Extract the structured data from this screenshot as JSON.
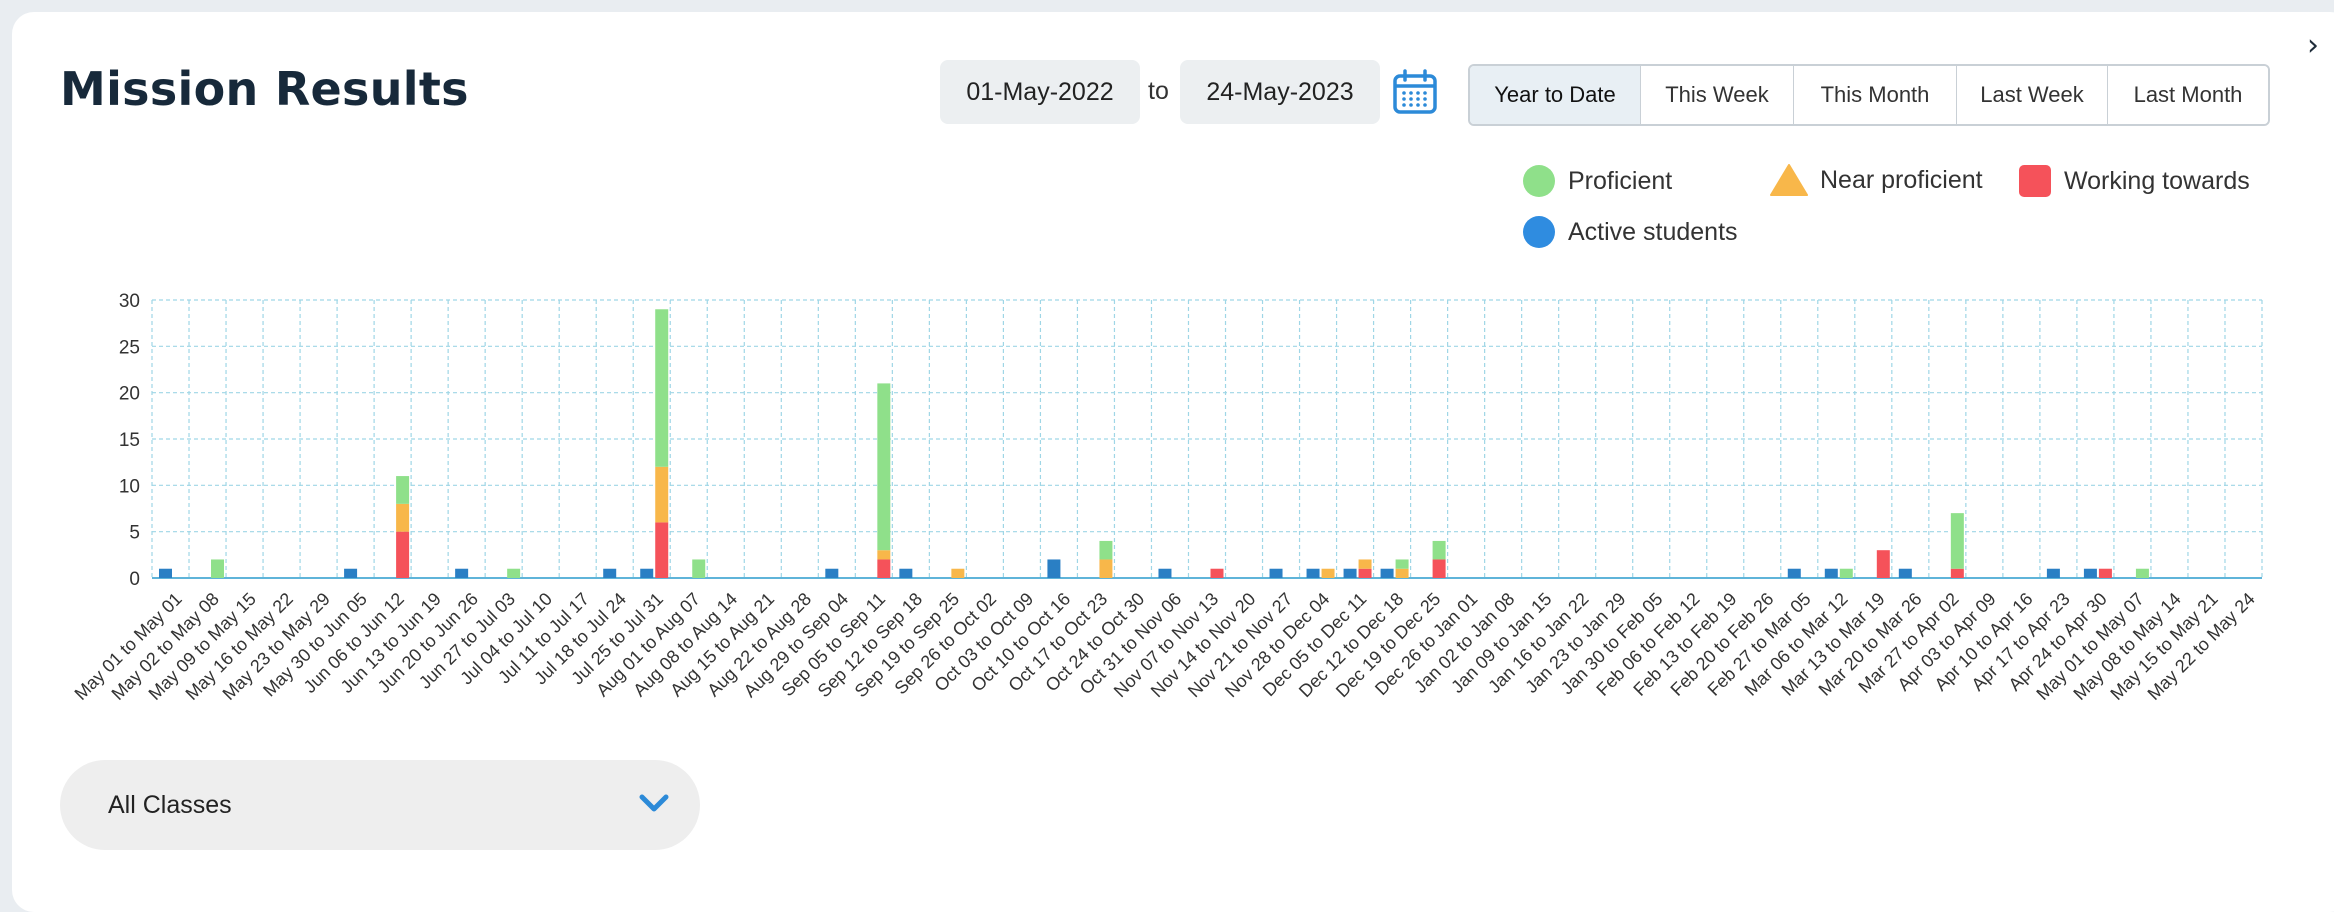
{
  "header": {
    "title": "Mission Results"
  },
  "date_range": {
    "start": "01-May-2022",
    "to_label": "to",
    "end": "24-May-2023"
  },
  "range_buttons": [
    "Year to Date",
    "This Week",
    "This Month",
    "Last Week",
    "Last Month"
  ],
  "active_range": "Year to Date",
  "legend": [
    {
      "label": "Proficient",
      "color": "#8fe08a",
      "shape": "circle"
    },
    {
      "label": "Near proficient",
      "color": "#f8b74a",
      "shape": "triangle"
    },
    {
      "label": "Working towards",
      "color": "#f5525a",
      "shape": "square"
    },
    {
      "label": "Active students",
      "color": "#2f8ce0",
      "shape": "circle"
    }
  ],
  "class_filter": {
    "selected": "All Classes"
  },
  "colors": {
    "active": "#2a7fc4",
    "proficient": "#8fe08a",
    "near": "#f8b74a",
    "working": "#f5525a",
    "grid": "#9fd6e6",
    "axis": "#5fb4d9"
  },
  "chart_data": {
    "type": "bar",
    "ylim": [
      0,
      30
    ],
    "yticks": [
      0,
      5,
      10,
      15,
      20,
      25,
      30
    ],
    "grid": true,
    "categories": [
      "May 01 to May 01",
      "May 02 to May 08",
      "May 09 to May 15",
      "May 16 to May 22",
      "May 23 to May 29",
      "May 30 to Jun 05",
      "Jun 06 to Jun 12",
      "Jun 13 to Jun 19",
      "Jun 20 to Jun 26",
      "Jun 27 to Jul 03",
      "Jul 04 to Jul 10",
      "Jul 11 to Jul 17",
      "Jul 18 to Jul 24",
      "Jul 25 to Jul 31",
      "Aug 01 to Aug 07",
      "Aug 08 to Aug 14",
      "Aug 15 to Aug 21",
      "Aug 22 to Aug 28",
      "Aug 29 to Sep 04",
      "Sep 05 to Sep 11",
      "Sep 12 to Sep 18",
      "Sep 19 to Sep 25",
      "Sep 26 to Oct 02",
      "Oct 03 to Oct 09",
      "Oct 10 to Oct 16",
      "Oct 17 to Oct 23",
      "Oct 24 to Oct 30",
      "Oct 31 to Nov 06",
      "Nov 07 to Nov 13",
      "Nov 14 to Nov 20",
      "Nov 21 to Nov 27",
      "Nov 28 to Dec 04",
      "Dec 05 to Dec 11",
      "Dec 12 to Dec 18",
      "Dec 19 to Dec 25",
      "Dec 26 to Jan 01",
      "Jan 02 to Jan 08",
      "Jan 09 to Jan 15",
      "Jan 16 to Jan 22",
      "Jan 23 to Jan 29",
      "Jan 30 to Feb 05",
      "Feb 06 to Feb 12",
      "Feb 13 to Feb 19",
      "Feb 20 to Feb 26",
      "Feb 27 to Mar 05",
      "Mar 06 to Mar 12",
      "Mar 13 to Mar 19",
      "Mar 20 to Mar 26",
      "Mar 27 to Apr 02",
      "Apr 03 to Apr 09",
      "Apr 10 to Apr 16",
      "Apr 17 to Apr 23",
      "Apr 24 to Apr 30",
      "May 01 to May 07",
      "May 08 to May 14",
      "May 15 to May 21",
      "May 22 to May 24"
    ],
    "series": [
      {
        "name": "Active students",
        "values": [
          1,
          0,
          0,
          0,
          0,
          1,
          0,
          0,
          1,
          0,
          0,
          0,
          1,
          1,
          0,
          0,
          0,
          0,
          1,
          0,
          1,
          0,
          0,
          0,
          2,
          0,
          0,
          1,
          0,
          0,
          1,
          1,
          1,
          1,
          0,
          0,
          0,
          0,
          0,
          0,
          0,
          0,
          0,
          0,
          1,
          1,
          0,
          1,
          0,
          0,
          0,
          1,
          1,
          0,
          0,
          0,
          0
        ]
      },
      {
        "name": "Working towards",
        "values": [
          0,
          0,
          0,
          0,
          0,
          0,
          5,
          0,
          0,
          0,
          0,
          0,
          0,
          6,
          0,
          0,
          0,
          0,
          0,
          2,
          0,
          0,
          0,
          0,
          0,
          0,
          0,
          0,
          1,
          0,
          0,
          0,
          1,
          0,
          2,
          0,
          0,
          0,
          0,
          0,
          0,
          0,
          0,
          0,
          0,
          0,
          3,
          0,
          1,
          0,
          0,
          0,
          1,
          0,
          0,
          0,
          0
        ]
      },
      {
        "name": "Near proficient",
        "values": [
          0,
          0,
          0,
          0,
          0,
          0,
          3,
          0,
          0,
          0,
          0,
          0,
          0,
          6,
          0,
          0,
          0,
          0,
          0,
          1,
          0,
          1,
          0,
          0,
          0,
          2,
          0,
          0,
          0,
          0,
          0,
          1,
          1,
          1,
          0,
          0,
          0,
          0,
          0,
          0,
          0,
          0,
          0,
          0,
          0,
          0,
          0,
          0,
          0,
          0,
          0,
          0,
          0,
          0,
          0,
          0,
          0
        ]
      },
      {
        "name": "Proficient",
        "values": [
          0,
          2,
          0,
          0,
          0,
          0,
          3,
          0,
          0,
          1,
          0,
          0,
          0,
          17,
          2,
          0,
          0,
          0,
          0,
          18,
          0,
          0,
          0,
          0,
          0,
          2,
          0,
          0,
          0,
          0,
          0,
          0,
          0,
          1,
          2,
          0,
          0,
          0,
          0,
          0,
          0,
          0,
          0,
          0,
          0,
          1,
          0,
          0,
          6,
          0,
          0,
          0,
          0,
          1,
          0,
          0,
          0
        ]
      }
    ]
  }
}
